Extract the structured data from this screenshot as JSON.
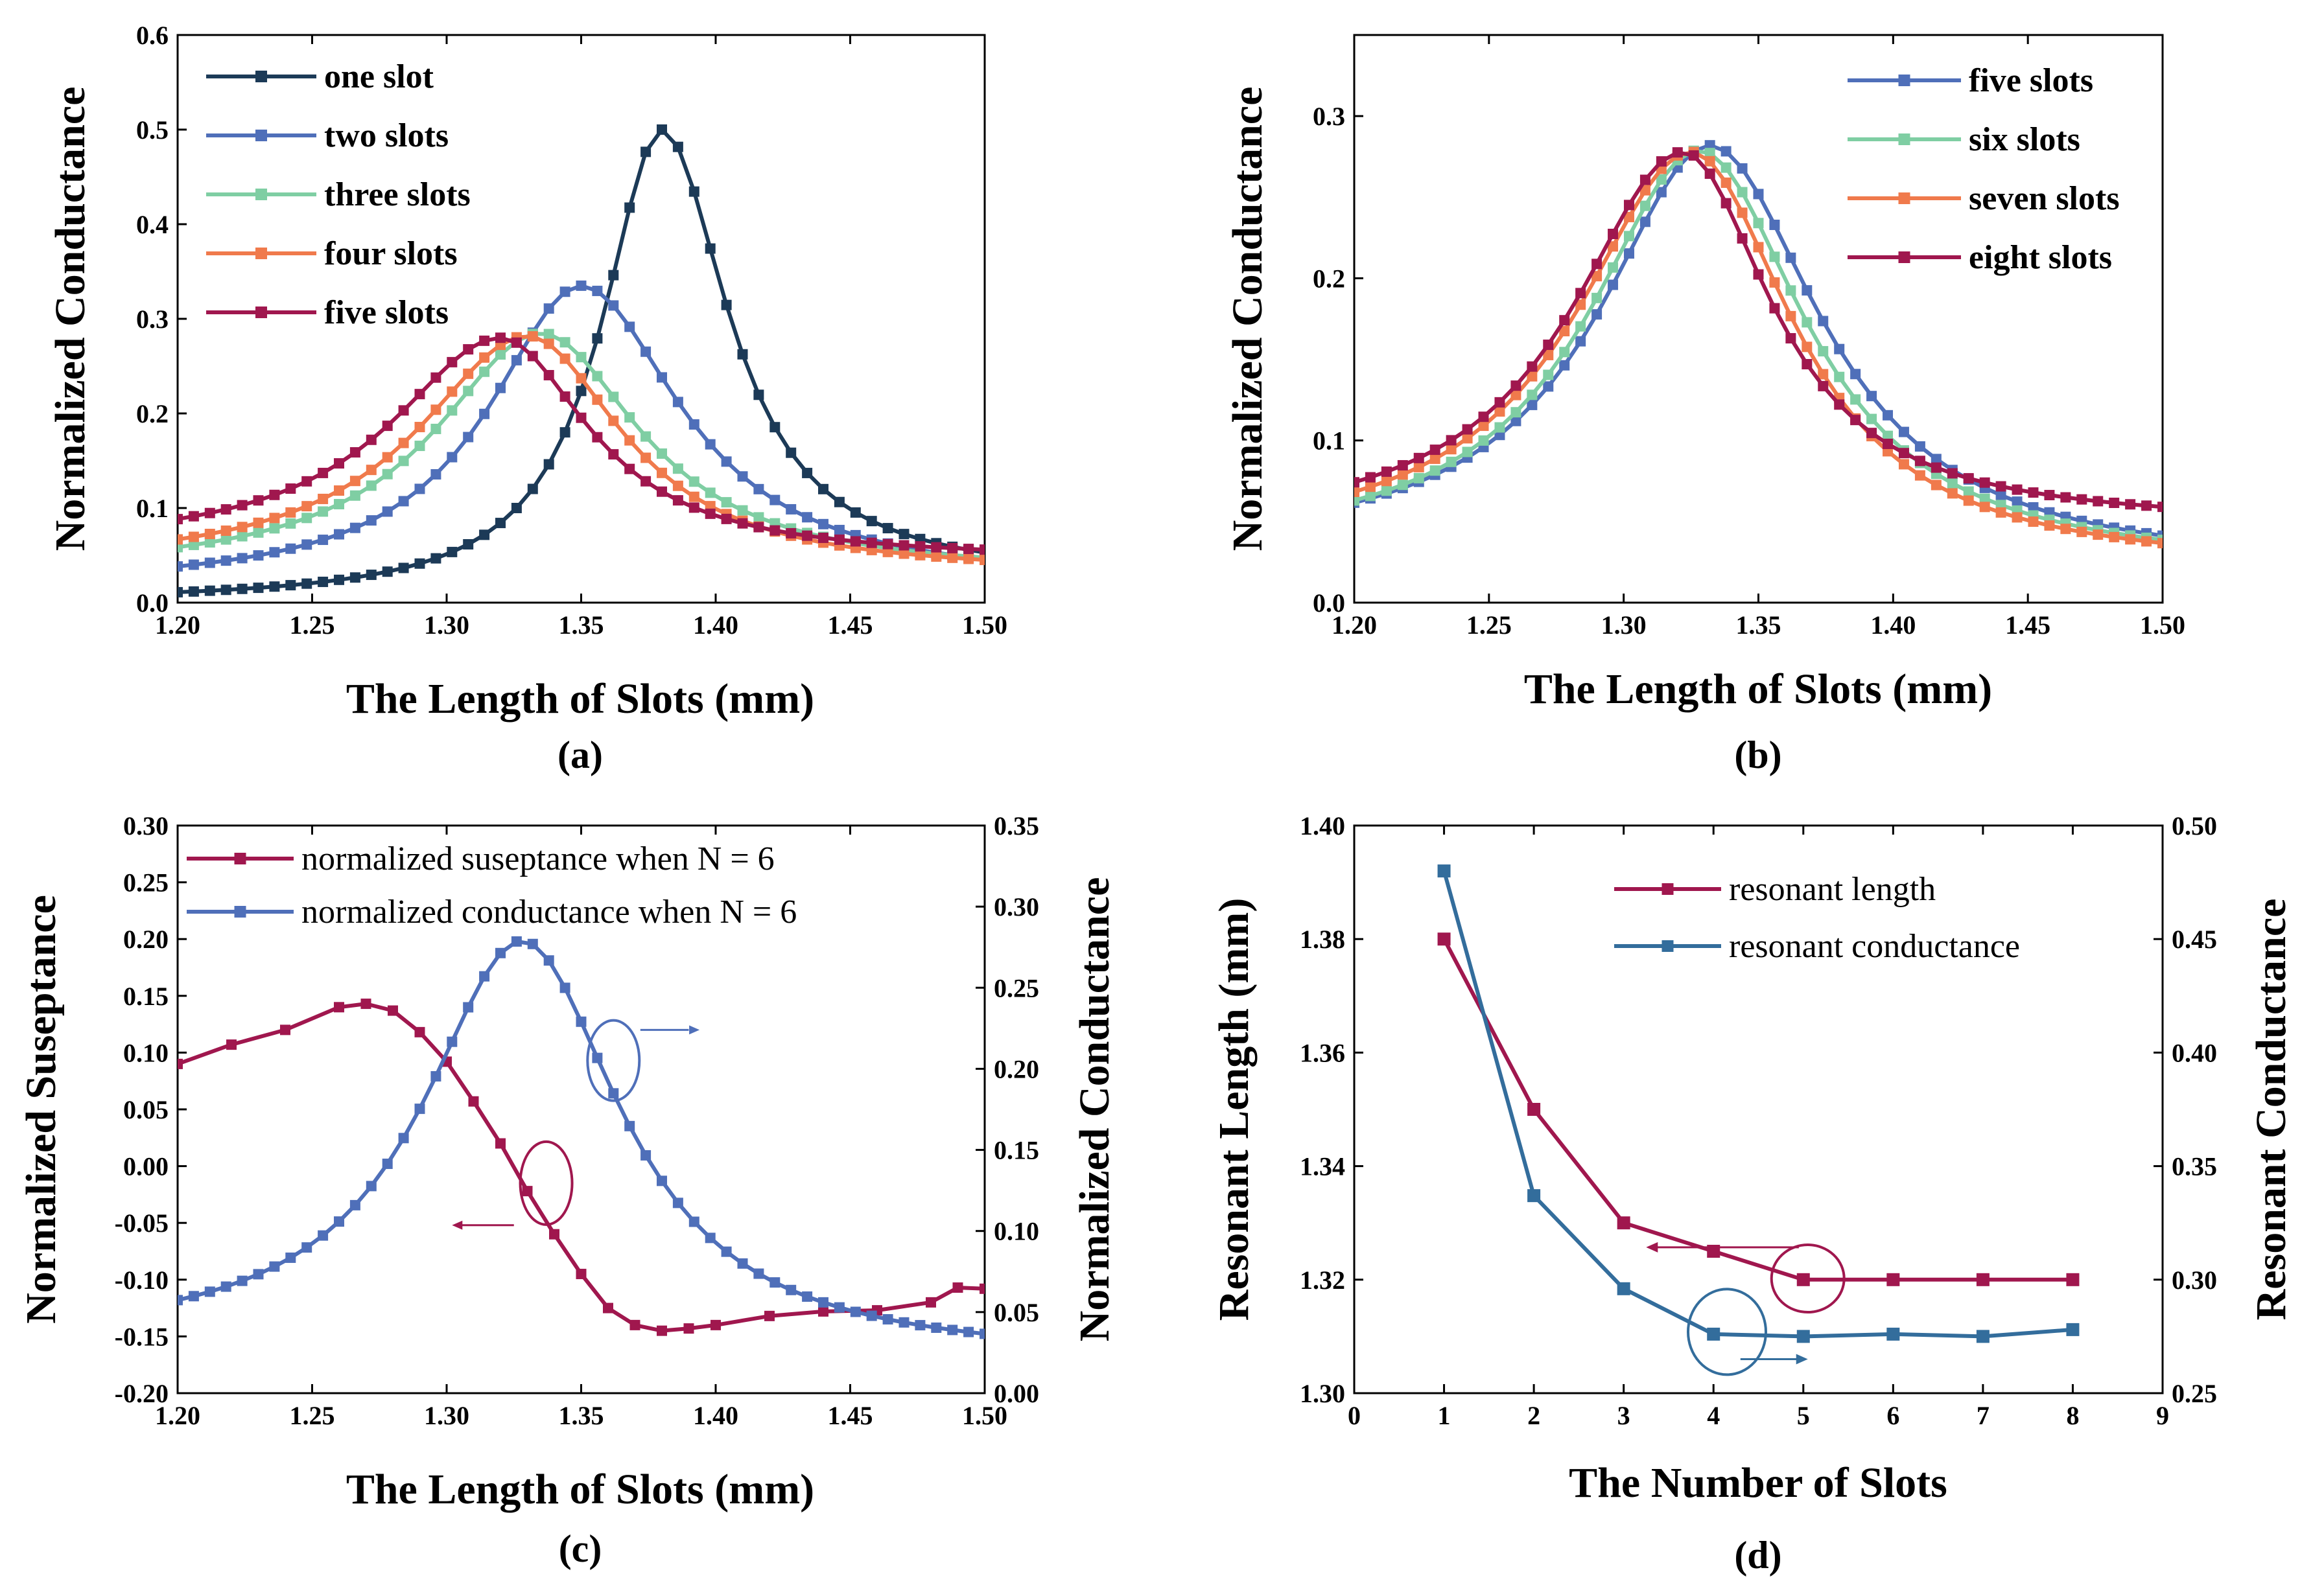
{
  "colors": {
    "navy": "#1c3a57",
    "blue": "#4f6fb9",
    "mint": "#7fcea3",
    "orange": "#f07a4c",
    "crimson": "#a0174e",
    "teal": "#336d9c"
  },
  "chart_data": [
    {
      "id": "a",
      "type": "line",
      "label": "(a)",
      "xlabel": "The Length of Slots (mm)",
      "ylabel": "Normalized Conductance",
      "xlim": [
        1.2,
        1.5
      ],
      "ylim": [
        0.0,
        0.6
      ],
      "xticks": [
        "1.20",
        "1.25",
        "1.30",
        "1.35",
        "1.40",
        "1.45",
        "1.50"
      ],
      "yticks": [
        "0.0",
        "0.1",
        "0.2",
        "0.3",
        "0.4",
        "0.5",
        "0.6"
      ],
      "legend_position": "top-left",
      "series": [
        {
          "name": "one slot",
          "color": "#1c3a57",
          "peak_x": 1.38,
          "peak_y": 0.5,
          "width_left": 0.027,
          "width_right": 0.03,
          "base_left": 0.0,
          "base_right": 0.025
        },
        {
          "name": "two slots",
          "color": "#4f6fb9",
          "peak_x": 1.35,
          "peak_y": 0.335,
          "width_left": 0.042,
          "width_right": 0.045,
          "base_left": 0.015,
          "base_right": 0.02
        },
        {
          "name": "three slots",
          "color": "#7fcea3",
          "peak_x": 1.335,
          "peak_y": 0.285,
          "width_left": 0.048,
          "width_right": 0.045,
          "base_left": 0.03,
          "base_right": 0.03
        },
        {
          "name": "four slots",
          "color": "#f07a4c",
          "peak_x": 1.33,
          "peak_y": 0.282,
          "width_left": 0.05,
          "width_right": 0.043,
          "base_left": 0.035,
          "base_right": 0.03
        },
        {
          "name": "five slots",
          "color": "#a0174e",
          "peak_x": 1.32,
          "peak_y": 0.28,
          "width_left": 0.05,
          "width_right": 0.04,
          "base_left": 0.055,
          "base_right": 0.045
        }
      ]
    },
    {
      "id": "b",
      "type": "line",
      "label": "(b)",
      "xlabel": "The Length of Slots (mm)",
      "ylabel": "Normalized Conductance",
      "xlim": [
        1.2,
        1.5
      ],
      "ylim": [
        0.0,
        0.35
      ],
      "xticks": [
        "1.20",
        "1.25",
        "1.30",
        "1.35",
        "1.40",
        "1.45",
        "1.50"
      ],
      "yticks": [
        "0.0",
        "0.1",
        "0.2",
        "0.3"
      ],
      "legend_position": "top-right",
      "series": [
        {
          "name": "five slots",
          "color": "#4f6fb9",
          "peak_x": 1.332,
          "peak_y": 0.282,
          "width_left": 0.05,
          "width_right": 0.05,
          "base_left": 0.03,
          "base_right": 0.02
        },
        {
          "name": "six slots",
          "color": "#7fcea3",
          "peak_x": 1.328,
          "peak_y": 0.279,
          "width_left": 0.05,
          "width_right": 0.048,
          "base_left": 0.03,
          "base_right": 0.02
        },
        {
          "name": "seven slots",
          "color": "#f07a4c",
          "peak_x": 1.325,
          "peak_y": 0.278,
          "width_left": 0.052,
          "width_right": 0.046,
          "base_left": 0.032,
          "base_right": 0.02
        },
        {
          "name": "eight slots",
          "color": "#a0174e",
          "peak_x": 1.322,
          "peak_y": 0.278,
          "width_left": 0.05,
          "width_right": 0.04,
          "base_left": 0.04,
          "base_right": 0.048
        }
      ]
    },
    {
      "id": "c",
      "type": "line",
      "label": "(c)",
      "xlabel": "The Length of Slots (mm)",
      "ylabel": "Normalized Suseptance",
      "ylabel_right": "Normalized Conductance",
      "xlim": [
        1.2,
        1.5
      ],
      "ylim": [
        -0.2,
        0.3
      ],
      "ylim_right": [
        0.0,
        0.35
      ],
      "xticks": [
        "1.20",
        "1.25",
        "1.30",
        "1.35",
        "1.40",
        "1.45",
        "1.50"
      ],
      "yticks": [
        "-0.20",
        "-0.15",
        "-0.10",
        "-0.05",
        "0.00",
        "0.05",
        "0.10",
        "0.15",
        "0.20",
        "0.25",
        "0.30"
      ],
      "yticks_right": [
        "0.00",
        "0.05",
        "0.10",
        "0.15",
        "0.20",
        "0.25",
        "0.30",
        "0.35"
      ],
      "legend_position": "top-left",
      "series": [
        {
          "name": "normalized suseptance when N = 6",
          "axis": "left",
          "color": "#a0174e",
          "x": [
            1.2,
            1.22,
            1.24,
            1.26,
            1.27,
            1.28,
            1.29,
            1.3,
            1.31,
            1.32,
            1.33,
            1.34,
            1.35,
            1.36,
            1.37,
            1.38,
            1.39,
            1.4,
            1.42,
            1.44,
            1.46,
            1.48,
            1.49,
            1.5
          ],
          "y": [
            0.09,
            0.107,
            0.12,
            0.14,
            0.143,
            0.137,
            0.118,
            0.092,
            0.057,
            0.02,
            -0.022,
            -0.06,
            -0.095,
            -0.125,
            -0.14,
            -0.145,
            -0.143,
            -0.14,
            -0.132,
            -0.128,
            -0.127,
            -0.12,
            -0.107,
            -0.108
          ]
        },
        {
          "name": "normalized conductance when N = 6",
          "axis": "right",
          "color": "#4f6fb9",
          "peak_x": 1.328,
          "peak_y": 0.279,
          "width_left": 0.045,
          "width_right": 0.045,
          "base_left": 0.03,
          "base_right": 0.02
        }
      ],
      "annotations": [
        {
          "text": "arrow-left",
          "color": "#a0174e",
          "target": "left axis"
        },
        {
          "text": "arrow-right",
          "color": "#4f6fb9",
          "target": "right axis"
        }
      ]
    },
    {
      "id": "d",
      "type": "line",
      "label": "(d)",
      "xlabel": "The Number of Slots",
      "ylabel": "Resonant Length (mm)",
      "ylabel_right": "Resonant Conductance",
      "xlim": [
        0,
        9
      ],
      "ylim": [
        1.3,
        1.4
      ],
      "ylim_right": [
        0.25,
        0.5
      ],
      "xticks": [
        "0",
        "1",
        "2",
        "3",
        "4",
        "5",
        "6",
        "7",
        "8",
        "9"
      ],
      "yticks": [
        "1.30",
        "1.32",
        "1.34",
        "1.36",
        "1.38",
        "1.40"
      ],
      "yticks_right": [
        "0.25",
        "0.30",
        "0.35",
        "0.40",
        "0.45",
        "0.50"
      ],
      "legend_position": "top-right",
      "series": [
        {
          "name": "resonant length",
          "axis": "left",
          "color": "#a0174e",
          "x": [
            1,
            2,
            3,
            4,
            5,
            6,
            7,
            8
          ],
          "y": [
            1.38,
            1.35,
            1.33,
            1.325,
            1.32,
            1.32,
            1.32,
            1.32
          ]
        },
        {
          "name": "resonant conductance",
          "axis": "right",
          "color": "#336d9c",
          "x": [
            1,
            2,
            3,
            4,
            5,
            6,
            7,
            8
          ],
          "y": [
            0.48,
            0.337,
            0.296,
            0.276,
            0.275,
            0.276,
            0.275,
            0.278
          ]
        }
      ],
      "annotations": [
        {
          "text": "arrow-left",
          "color": "#a0174e",
          "target": "left axis"
        },
        {
          "text": "arrow-right",
          "color": "#336d9c",
          "target": "right axis"
        }
      ]
    }
  ]
}
